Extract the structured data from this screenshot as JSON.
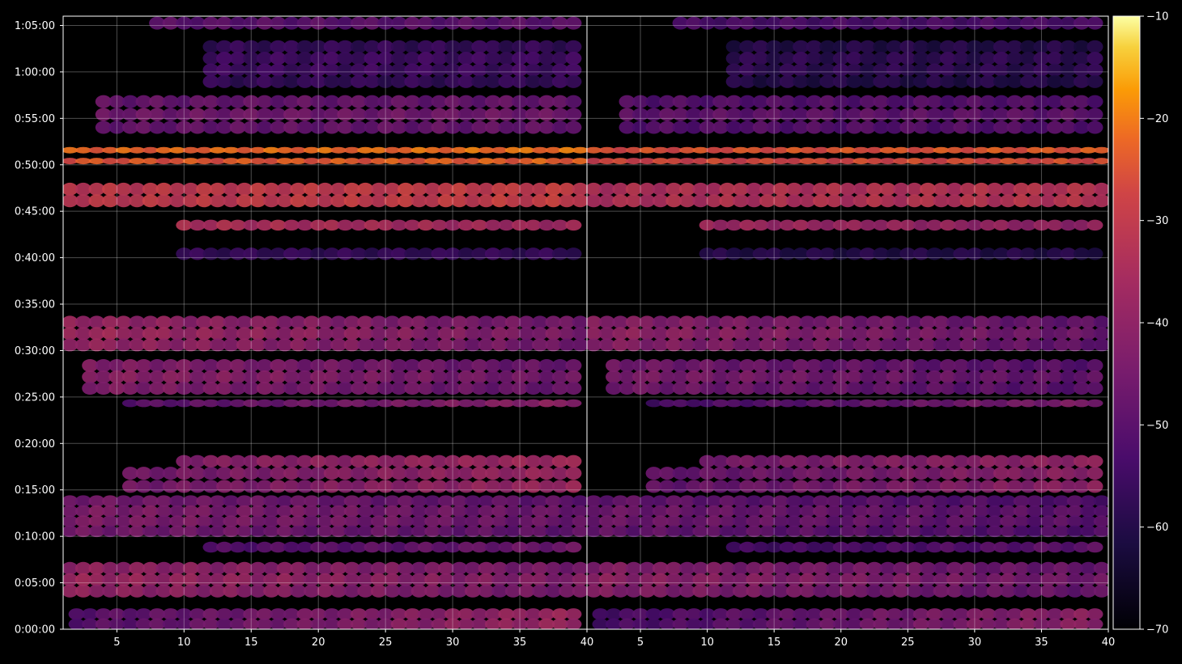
{
  "chart_data": {
    "type": "heatmap",
    "title": "",
    "xlabel": "",
    "ylabel": "",
    "panels": [
      {
        "name": "",
        "xlim": [
          1,
          40
        ],
        "x_ticks": [
          5,
          10,
          15,
          20,
          25,
          30,
          35,
          40
        ]
      },
      {
        "name": "",
        "xlim": [
          1,
          40
        ],
        "x_ticks": [
          5,
          10,
          15,
          20,
          25,
          30,
          35,
          40
        ]
      }
    ],
    "y_range_seconds": [
      0,
      3960
    ],
    "y_ticks": [
      {
        "label": "0:00:00",
        "seconds": 0
      },
      {
        "label": "0:05:00",
        "seconds": 300
      },
      {
        "label": "0:10:00",
        "seconds": 600
      },
      {
        "label": "0:15:00",
        "seconds": 900
      },
      {
        "label": "0:20:00",
        "seconds": 1200
      },
      {
        "label": "0:25:00",
        "seconds": 1500
      },
      {
        "label": "0:30:00",
        "seconds": 1800
      },
      {
        "label": "0:35:00",
        "seconds": 2100
      },
      {
        "label": "0:40:00",
        "seconds": 2400
      },
      {
        "label": "0:45:00",
        "seconds": 2700
      },
      {
        "label": "0:50:00",
        "seconds": 3000
      },
      {
        "label": "0:55:00",
        "seconds": 3300
      },
      {
        "label": "1:00:00",
        "seconds": 3600
      },
      {
        "label": "1:05:00",
        "seconds": 3900
      }
    ],
    "colorbar": {
      "range": [
        -70,
        -10
      ],
      "ticks": [
        -10,
        -20,
        -30,
        -40,
        -50,
        -60,
        -70
      ],
      "tick_labels": [
        "−10",
        "−20",
        "−30",
        "−40",
        "−50",
        "−60",
        "−70"
      ],
      "colormap": "inferno"
    },
    "grid": true,
    "bands": [
      {
        "t0": 0,
        "t1": 130,
        "level": -42,
        "slope": 0.35,
        "x_start": 2
      },
      {
        "t0": 210,
        "t1": 430,
        "level": -40,
        "slope": -0.15,
        "x_start": 1
      },
      {
        "t0": 500,
        "t1": 560,
        "level": -48,
        "slope": 0.2,
        "x_start": 12
      },
      {
        "t0": 600,
        "t1": 860,
        "level": -45,
        "slope": -0.1,
        "x_start": 1
      },
      {
        "t0": 880,
        "t1": 1050,
        "level": -40,
        "slope": 0.25,
        "x_start": 6
      },
      {
        "t0": 1050,
        "t1": 1120,
        "level": -38,
        "slope": 0.2,
        "x_start": 10
      },
      {
        "t0": 1440,
        "t1": 1480,
        "level": -44,
        "slope": 0.3,
        "x_start": 6
      },
      {
        "t0": 1520,
        "t1": 1740,
        "level": -43,
        "slope": -0.15,
        "x_start": 3
      },
      {
        "t0": 1800,
        "t1": 2020,
        "level": -40,
        "slope": -0.2,
        "x_start": 1
      },
      {
        "t0": 2390,
        "t1": 2460,
        "level": -55,
        "slope": 0.0,
        "x_start": 10
      },
      {
        "t0": 2580,
        "t1": 2640,
        "level": -33,
        "slope": -0.1,
        "x_start": 10
      },
      {
        "t0": 2730,
        "t1": 2880,
        "level": -28,
        "slope": 0.05,
        "x_start": 1
      },
      {
        "t0": 3010,
        "t1": 3040,
        "level": -22,
        "slope": 0.05,
        "x_start": 1
      },
      {
        "t0": 3080,
        "t1": 3110,
        "level": -20,
        "slope": 0.05,
        "x_start": 1
      },
      {
        "t0": 3200,
        "t1": 3450,
        "level": -46,
        "slope": 0.0,
        "x_start": 4
      },
      {
        "t0": 3500,
        "t1": 3800,
        "level": -55,
        "slope": 0.0,
        "x_start": 12
      },
      {
        "t0": 3870,
        "t1": 3960,
        "level": -48,
        "slope": 0.0,
        "x_start": 8
      }
    ]
  }
}
